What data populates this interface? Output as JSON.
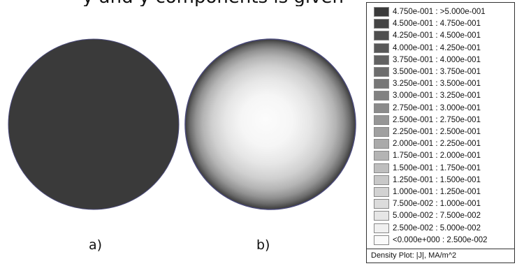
{
  "top_text": "y and y components is given",
  "captions": {
    "a": "a)",
    "b": "b)"
  },
  "legend": {
    "items": [
      {
        "label": "4.750e-001 : >5.000e-001",
        "color": "#3a3a3a"
      },
      {
        "label": "4.500e-001 : 4.750e-001",
        "color": "#444444"
      },
      {
        "label": "4.250e-001 : 4.500e-001",
        "color": "#4e4e4e"
      },
      {
        "label": "4.000e-001 : 4.250e-001",
        "color": "#585858"
      },
      {
        "label": "3.750e-001 : 4.000e-001",
        "color": "#626262"
      },
      {
        "label": "3.500e-001 : 3.750e-001",
        "color": "#6d6d6d"
      },
      {
        "label": "3.250e-001 : 3.500e-001",
        "color": "#777777"
      },
      {
        "label": "3.000e-001 : 3.250e-001",
        "color": "#818181"
      },
      {
        "label": "2.750e-001 : 3.000e-001",
        "color": "#8b8b8b"
      },
      {
        "label": "2.500e-001 : 2.750e-001",
        "color": "#969696"
      },
      {
        "label": "2.250e-001 : 2.500e-001",
        "color": "#a0a0a0"
      },
      {
        "label": "2.000e-001 : 2.250e-001",
        "color": "#aaaaaa"
      },
      {
        "label": "1.750e-001 : 2.000e-001",
        "color": "#b4b4b4"
      },
      {
        "label": "1.500e-001 : 1.750e-001",
        "color": "#bebebe"
      },
      {
        "label": "1.250e-001 : 1.500e-001",
        "color": "#c8c8c8"
      },
      {
        "label": "1.000e-001 : 1.250e-001",
        "color": "#d2d2d2"
      },
      {
        "label": "7.500e-002 : 1.000e-001",
        "color": "#dcdcdc"
      },
      {
        "label": "5.000e-002 : 7.500e-002",
        "color": "#e6e6e6"
      },
      {
        "label": "2.500e-002 : 5.000e-002",
        "color": "#f0f0f0"
      },
      {
        "label": "<0.000e+000 : 2.500e-002",
        "color": "#fafafa"
      }
    ],
    "caption": "Density Plot: |J|, MA/m^2"
  },
  "colors": {
    "disk_a_fill": "#3a3a3a",
    "disk_edge": "#4a4a7a"
  }
}
